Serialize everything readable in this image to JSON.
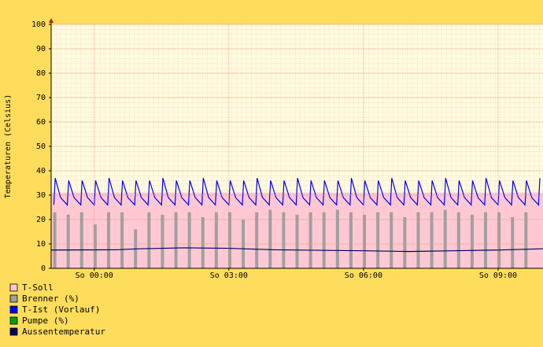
{
  "chart_data": {
    "type": "line",
    "y_label": "Temperaturen (Celsius)",
    "xlim": [
      -0.96,
      10
    ],
    "xticks": [
      {
        "value": 0,
        "label": "So 00:00"
      },
      {
        "value": 3,
        "label": "So 03:00"
      },
      {
        "value": 6,
        "label": "So 06:00"
      },
      {
        "value": 9,
        "label": "So 09:00"
      }
    ],
    "ylim": [
      0,
      100
    ],
    "yticks": [
      0,
      10,
      20,
      30,
      40,
      50,
      60,
      70,
      80,
      90,
      100
    ],
    "grid": true,
    "series": [
      {
        "name": "T-Soll",
        "color": "#ffc8d2",
        "kind": "area",
        "x": [
          -0.96,
          10
        ],
        "values": [
          31,
          31
        ]
      },
      {
        "name": "Brenner (%)",
        "color": "#a0a0a0",
        "kind": "bar",
        "x": [
          -0.88,
          -0.58,
          -0.28,
          0.02,
          0.32,
          0.62,
          0.92,
          1.22,
          1.52,
          1.82,
          2.12,
          2.42,
          2.72,
          3.02,
          3.32,
          3.62,
          3.92,
          4.22,
          4.52,
          4.82,
          5.12,
          5.42,
          5.72,
          6.02,
          6.32,
          6.62,
          6.92,
          7.22,
          7.52,
          7.82,
          8.12,
          8.42,
          8.72,
          9.02,
          9.32,
          9.62
        ],
        "values": [
          23,
          22,
          23,
          18,
          23,
          23,
          16,
          23,
          22,
          23,
          23,
          21,
          23,
          23,
          20,
          23,
          24,
          23,
          22,
          23,
          23,
          24,
          23,
          22,
          23,
          23,
          21,
          23,
          23,
          24,
          23,
          22,
          23,
          23,
          21,
          23
        ]
      },
      {
        "name": "T-Ist  (Vorlauf)",
        "color": "#0000ff",
        "kind": "line",
        "x": [
          -0.9,
          -0.87,
          -0.75,
          -0.6,
          -0.57,
          -0.45,
          -0.3,
          -0.27,
          -0.15,
          0,
          0.03,
          0.15,
          0.3,
          0.33,
          0.45,
          0.6,
          0.63,
          0.75,
          0.9,
          0.93,
          1.05,
          1.2,
          1.23,
          1.35,
          1.5,
          1.53,
          1.65,
          1.8,
          1.83,
          1.95,
          2.1,
          2.13,
          2.25,
          2.4,
          2.43,
          2.55,
          2.7,
          2.73,
          2.85,
          3,
          3.03,
          3.15,
          3.3,
          3.33,
          3.45,
          3.6,
          3.63,
          3.75,
          3.9,
          3.93,
          4.05,
          4.2,
          4.23,
          4.35,
          4.5,
          4.53,
          4.65,
          4.8,
          4.83,
          4.95,
          5.1,
          5.13,
          5.25,
          5.4,
          5.43,
          5.55,
          5.7,
          5.73,
          5.85,
          6,
          6.03,
          6.15,
          6.3,
          6.33,
          6.45,
          6.6,
          6.63,
          6.75,
          6.9,
          6.93,
          7.05,
          7.2,
          7.23,
          7.35,
          7.5,
          7.53,
          7.65,
          7.8,
          7.83,
          7.95,
          8.1,
          8.13,
          8.25,
          8.4,
          8.43,
          8.55,
          8.7,
          8.73,
          8.85,
          9,
          9.03,
          9.15,
          9.3,
          9.33,
          9.45,
          9.6,
          9.63,
          9.75,
          9.9,
          9.93
        ],
        "values": [
          26,
          37,
          29,
          26,
          36,
          29,
          26,
          36,
          29,
          26,
          36,
          29,
          26,
          37,
          29,
          26,
          36,
          29,
          26,
          36,
          29,
          26,
          36,
          29,
          26,
          37,
          29,
          26,
          36,
          29,
          26,
          36,
          29,
          26,
          37,
          29,
          26,
          36,
          29,
          26,
          36,
          29,
          26,
          36,
          29,
          26,
          37,
          29,
          26,
          36,
          29,
          26,
          36,
          29,
          26,
          37,
          29,
          26,
          36,
          29,
          26,
          36,
          29,
          26,
          36,
          29,
          26,
          37,
          29,
          26,
          36,
          29,
          26,
          36,
          29,
          26,
          37,
          29,
          26,
          36,
          29,
          26,
          36,
          29,
          26,
          36,
          29,
          26,
          37,
          29,
          26,
          36,
          29,
          26,
          36,
          29,
          26,
          37,
          29,
          26,
          36,
          29,
          26,
          36,
          29,
          26,
          36,
          29,
          26,
          37
        ]
      },
      {
        "name": "Pumpe (%)",
        "color": "#00a000",
        "kind": "line",
        "x": [],
        "values": []
      },
      {
        "name": "Aussentemperatur",
        "color": "#000060",
        "kind": "line",
        "x": [
          -0.96,
          0.5,
          1,
          2,
          3,
          4,
          5,
          6,
          7,
          8,
          9,
          10
        ],
        "values": [
          7.5,
          7.6,
          8.0,
          8.4,
          8.2,
          7.6,
          7.4,
          7.2,
          6.9,
          7.2,
          7.5,
          8.0
        ]
      }
    ]
  }
}
